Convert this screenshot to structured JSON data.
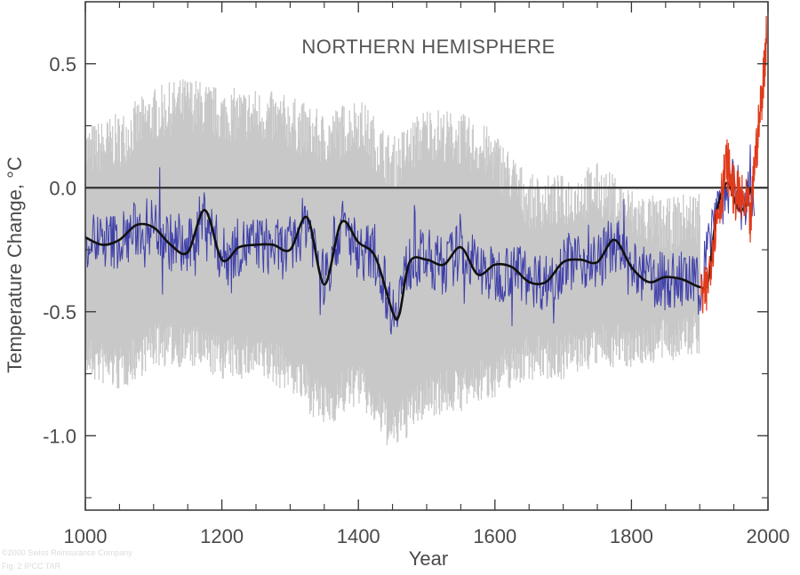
{
  "chart_data": {
    "type": "line",
    "title": "NORTHERN HEMISPHERE",
    "xlabel": "Year",
    "ylabel": "Temperature Change, °C",
    "xlim": [
      1000,
      2000
    ],
    "ylim": [
      -1.3,
      0.75
    ],
    "xticks": [
      1000,
      1200,
      1400,
      1600,
      1800,
      2000
    ],
    "xticks_minor": [
      1050,
      1100,
      1150,
      1250,
      1300,
      1350,
      1450,
      1500,
      1550,
      1650,
      1700,
      1750,
      1850,
      1900,
      1950
    ],
    "yticks": [
      {
        "value": 0.5,
        "label": "0.5"
      },
      {
        "value": 0.0,
        "label": "0.0"
      },
      {
        "value": -0.5,
        "label": "-0.5"
      },
      {
        "value": -1.0,
        "label": "-1.0"
      }
    ],
    "yticks_minor": [
      0.25,
      -0.25,
      -0.75,
      -1.25
    ],
    "reference_line": {
      "y": 0.0,
      "color": "#333333"
    },
    "grid": false,
    "colors": {
      "uncertainty": "#c8c8c8",
      "reconstruction": "#3f3faa",
      "smoothed": "#111111",
      "instrumental": "#e03a1a"
    },
    "series": [
      {
        "role": "uncertainty-band",
        "x": [
          1000,
          1050,
          1100,
          1150,
          1200,
          1250,
          1300,
          1350,
          1400,
          1450,
          1500,
          1550,
          1600,
          1650,
          1700,
          1750,
          1800,
          1850,
          1900
        ],
        "upper": [
          0.1,
          0.15,
          0.25,
          0.3,
          0.25,
          0.25,
          0.22,
          0.15,
          0.22,
          0.05,
          0.18,
          0.15,
          0.08,
          -0.1,
          -0.1,
          -0.05,
          -0.15,
          -0.2,
          -0.15
        ],
        "lower": [
          -0.65,
          -0.7,
          -0.6,
          -0.6,
          -0.65,
          -0.65,
          -0.7,
          -0.85,
          -0.75,
          -0.95,
          -0.8,
          -0.78,
          -0.72,
          -0.65,
          -0.65,
          -0.6,
          -0.6,
          -0.58,
          -0.55
        ]
      },
      {
        "role": "reconstruction",
        "x": [
          1000,
          1025,
          1050,
          1075,
          1100,
          1125,
          1150,
          1175,
          1200,
          1225,
          1250,
          1275,
          1300,
          1325,
          1350,
          1375,
          1400,
          1425,
          1450,
          1475,
          1500,
          1525,
          1550,
          1575,
          1600,
          1625,
          1650,
          1675,
          1700,
          1725,
          1750,
          1775,
          1800,
          1825,
          1850,
          1875,
          1900,
          1925,
          1950,
          1975
        ],
        "y": [
          -0.2,
          -0.22,
          -0.21,
          -0.17,
          -0.15,
          -0.22,
          -0.26,
          -0.1,
          -0.28,
          -0.24,
          -0.23,
          -0.24,
          -0.26,
          -0.12,
          -0.38,
          -0.15,
          -0.25,
          -0.27,
          -0.5,
          -0.3,
          -0.28,
          -0.32,
          -0.25,
          -0.32,
          -0.36,
          -0.32,
          -0.36,
          -0.38,
          -0.3,
          -0.29,
          -0.3,
          -0.22,
          -0.34,
          -0.36,
          -0.38,
          -0.37,
          -0.4,
          -0.05,
          0.0,
          -0.05
        ]
      },
      {
        "role": "smoothed",
        "x": [
          1000,
          1025,
          1050,
          1075,
          1100,
          1125,
          1150,
          1175,
          1200,
          1225,
          1250,
          1275,
          1300,
          1325,
          1350,
          1375,
          1400,
          1425,
          1450,
          1460,
          1475,
          1500,
          1525,
          1550,
          1575,
          1600,
          1625,
          1650,
          1675,
          1700,
          1725,
          1750,
          1775,
          1800,
          1825,
          1850,
          1875,
          1900,
          1912,
          1925,
          1940,
          1955,
          1965,
          1975
        ],
        "y": [
          -0.2,
          -0.23,
          -0.21,
          -0.15,
          -0.16,
          -0.23,
          -0.26,
          -0.09,
          -0.29,
          -0.24,
          -0.23,
          -0.23,
          -0.25,
          -0.12,
          -0.39,
          -0.14,
          -0.22,
          -0.28,
          -0.5,
          -0.51,
          -0.3,
          -0.29,
          -0.31,
          -0.24,
          -0.35,
          -0.31,
          -0.32,
          -0.38,
          -0.38,
          -0.3,
          -0.29,
          -0.3,
          -0.21,
          -0.32,
          -0.38,
          -0.36,
          -0.37,
          -0.4,
          -0.38,
          -0.1,
          0.02,
          -0.08,
          -0.08,
          0.0
        ]
      },
      {
        "role": "instrumental",
        "x": [
          1902,
          1910,
          1920,
          1930,
          1940,
          1950,
          1960,
          1970,
          1975,
          1980,
          1985,
          1990,
          1995,
          1998
        ],
        "y": [
          -0.45,
          -0.42,
          -0.2,
          -0.05,
          0.1,
          -0.02,
          -0.05,
          -0.08,
          -0.15,
          0.1,
          0.2,
          0.35,
          0.5,
          0.65
        ]
      }
    ],
    "copyright_text": [
      "©2000 Swiss Reinsurance Company",
      "Fig. 2 IPCC TAR"
    ]
  }
}
